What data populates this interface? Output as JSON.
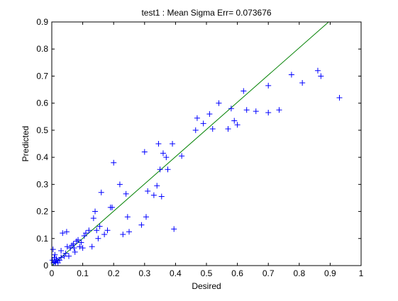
{
  "chart_data": {
    "type": "scatter",
    "title": "test1 :  Mean Sigma Err= 0.073676",
    "xlabel": "Desired",
    "ylabel": "Predicted",
    "xlim": [
      0,
      1
    ],
    "ylim": [
      0,
      0.9
    ],
    "xticks": [
      "0",
      "0.1",
      "0.2",
      "0.3",
      "0.4",
      "0.5",
      "0.6",
      "0.7",
      "0.8",
      "0.9",
      "1"
    ],
    "yticks": [
      "0",
      "0.1",
      "0.2",
      "0.3",
      "0.4",
      "0.5",
      "0.6",
      "0.7",
      "0.8",
      "0.9"
    ],
    "grid": false,
    "marker": "+",
    "marker_color": "#0000ff",
    "reference_line": {
      "from": [
        0,
        0
      ],
      "to": [
        0.895,
        0.9
      ],
      "color": "#008000"
    },
    "series": [
      {
        "points": [
          [
            0.002,
            0.02
          ],
          [
            0.004,
            0.06
          ],
          [
            0.006,
            0.01
          ],
          [
            0.008,
            0.03
          ],
          [
            0.01,
            0.04
          ],
          [
            0.01,
            0.015
          ],
          [
            0.012,
            0.012
          ],
          [
            0.015,
            0.025
          ],
          [
            0.018,
            0.018
          ],
          [
            0.02,
            0.01
          ],
          [
            0.025,
            0.02
          ],
          [
            0.03,
            0.03
          ],
          [
            0.03,
            0.055
          ],
          [
            0.035,
            0.12
          ],
          [
            0.04,
            0.035
          ],
          [
            0.045,
            0.045
          ],
          [
            0.048,
            0.125
          ],
          [
            0.05,
            0.07
          ],
          [
            0.055,
            0.035
          ],
          [
            0.06,
            0.065
          ],
          [
            0.065,
            0.075
          ],
          [
            0.07,
            0.08
          ],
          [
            0.072,
            0.065
          ],
          [
            0.075,
            0.05
          ],
          [
            0.08,
            0.09
          ],
          [
            0.085,
            0.095
          ],
          [
            0.09,
            0.07
          ],
          [
            0.095,
            0.085
          ],
          [
            0.1,
            0.065
          ],
          [
            0.105,
            0.11
          ],
          [
            0.11,
            0.12
          ],
          [
            0.12,
            0.13
          ],
          [
            0.13,
            0.07
          ],
          [
            0.135,
            0.175
          ],
          [
            0.14,
            0.2
          ],
          [
            0.145,
            0.13
          ],
          [
            0.15,
            0.1
          ],
          [
            0.155,
            0.145
          ],
          [
            0.16,
            0.27
          ],
          [
            0.17,
            0.115
          ],
          [
            0.18,
            0.13
          ],
          [
            0.19,
            0.215
          ],
          [
            0.195,
            0.215
          ],
          [
            0.2,
            0.38
          ],
          [
            0.22,
            0.3
          ],
          [
            0.23,
            0.115
          ],
          [
            0.24,
            0.265
          ],
          [
            0.245,
            0.18
          ],
          [
            0.25,
            0.125
          ],
          [
            0.29,
            0.15
          ],
          [
            0.3,
            0.42
          ],
          [
            0.305,
            0.18
          ],
          [
            0.31,
            0.275
          ],
          [
            0.33,
            0.26
          ],
          [
            0.34,
            0.295
          ],
          [
            0.345,
            0.45
          ],
          [
            0.35,
            0.355
          ],
          [
            0.355,
            0.255
          ],
          [
            0.36,
            0.415
          ],
          [
            0.37,
            0.4
          ],
          [
            0.375,
            0.355
          ],
          [
            0.39,
            0.45
          ],
          [
            0.395,
            0.135
          ],
          [
            0.42,
            0.405
          ],
          [
            0.465,
            0.5
          ],
          [
            0.47,
            0.545
          ],
          [
            0.49,
            0.525
          ],
          [
            0.51,
            0.56
          ],
          [
            0.52,
            0.505
          ],
          [
            0.54,
            0.6
          ],
          [
            0.57,
            0.505
          ],
          [
            0.58,
            0.58
          ],
          [
            0.59,
            0.535
          ],
          [
            0.6,
            0.52
          ],
          [
            0.62,
            0.645
          ],
          [
            0.63,
            0.575
          ],
          [
            0.66,
            0.57
          ],
          [
            0.7,
            0.565
          ],
          [
            0.7,
            0.665
          ],
          [
            0.735,
            0.575
          ],
          [
            0.775,
            0.705
          ],
          [
            0.81,
            0.675
          ],
          [
            0.86,
            0.72
          ],
          [
            0.87,
            0.7
          ],
          [
            0.93,
            0.62
          ]
        ]
      }
    ]
  }
}
